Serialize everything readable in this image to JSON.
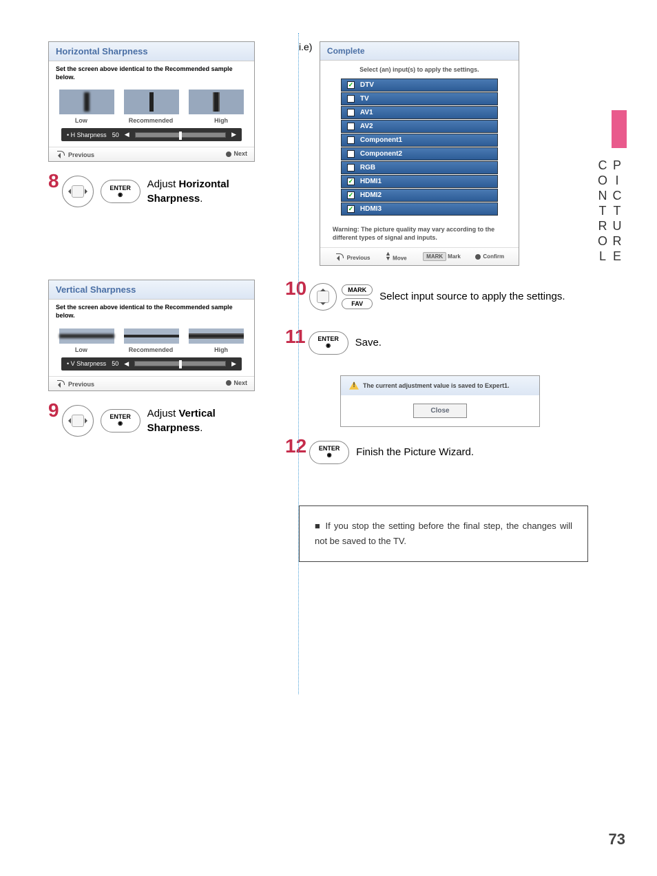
{
  "vertical_text": "PICTURE CONTROL",
  "page_number": "73",
  "horiz_sharp": {
    "title": "Horizontal Sharpness",
    "subtitle": "Set the screen above identical to the Recommended sample  below.",
    "labels": [
      "Low",
      "Recommended",
      "High"
    ],
    "slider_label": "• H Sharpness",
    "slider_value": "50",
    "prev": "Previous",
    "next": "Next"
  },
  "vert_sharp": {
    "title": "Vertical Sharpness",
    "subtitle": "Set the screen above identical to the Recommended sample  below.",
    "labels": [
      "Low",
      "Recommended",
      "High"
    ],
    "slider_label": "• V Sharpness",
    "slider_value": "50",
    "prev": "Previous",
    "next": "Next"
  },
  "step8": {
    "num": "8",
    "btn": "ENTER",
    "t1": "Adjust ",
    "b1": "Horizontal Sharpness",
    "t2": "."
  },
  "step9": {
    "num": "9",
    "btn": "ENTER",
    "t1": "Adjust ",
    "b1": "Vertical Sharpness",
    "t2": "."
  },
  "ie_label": "i.e)",
  "complete": {
    "title": "Complete",
    "sub": "Select (an) input(s) to apply the settings.",
    "inputs": [
      {
        "label": "DTV",
        "checked": true
      },
      {
        "label": "TV",
        "checked": false
      },
      {
        "label": "AV1",
        "checked": false
      },
      {
        "label": "AV2",
        "checked": false
      },
      {
        "label": "Component1",
        "checked": false
      },
      {
        "label": "Component2",
        "checked": false
      },
      {
        "label": "RGB",
        "checked": false
      },
      {
        "label": "HDMI1",
        "checked": true
      },
      {
        "label": "HDMI2",
        "checked": true
      },
      {
        "label": "HDMI3",
        "checked": true
      }
    ],
    "warning": "Warning: The picture quality may vary according to the different types of signal and inputs.",
    "footer": {
      "prev": "Previous",
      "move": "Move",
      "markkey": "MARK",
      "mark": "Mark",
      "confirm": "Confirm"
    }
  },
  "step10": {
    "num": "10",
    "mark": "MARK",
    "fav": "FAV",
    "text": "Select input source to apply the settings."
  },
  "step11": {
    "num": "11",
    "btn": "ENTER",
    "text": "Save."
  },
  "confirm": {
    "msg": "The current adjustment value is saved to Expert1.",
    "close": "Close"
  },
  "step12": {
    "num": "12",
    "btn": "ENTER",
    "text": "Finish the Picture Wizard."
  },
  "note": "If you stop the setting before the final step, the changes will not be saved to the TV."
}
